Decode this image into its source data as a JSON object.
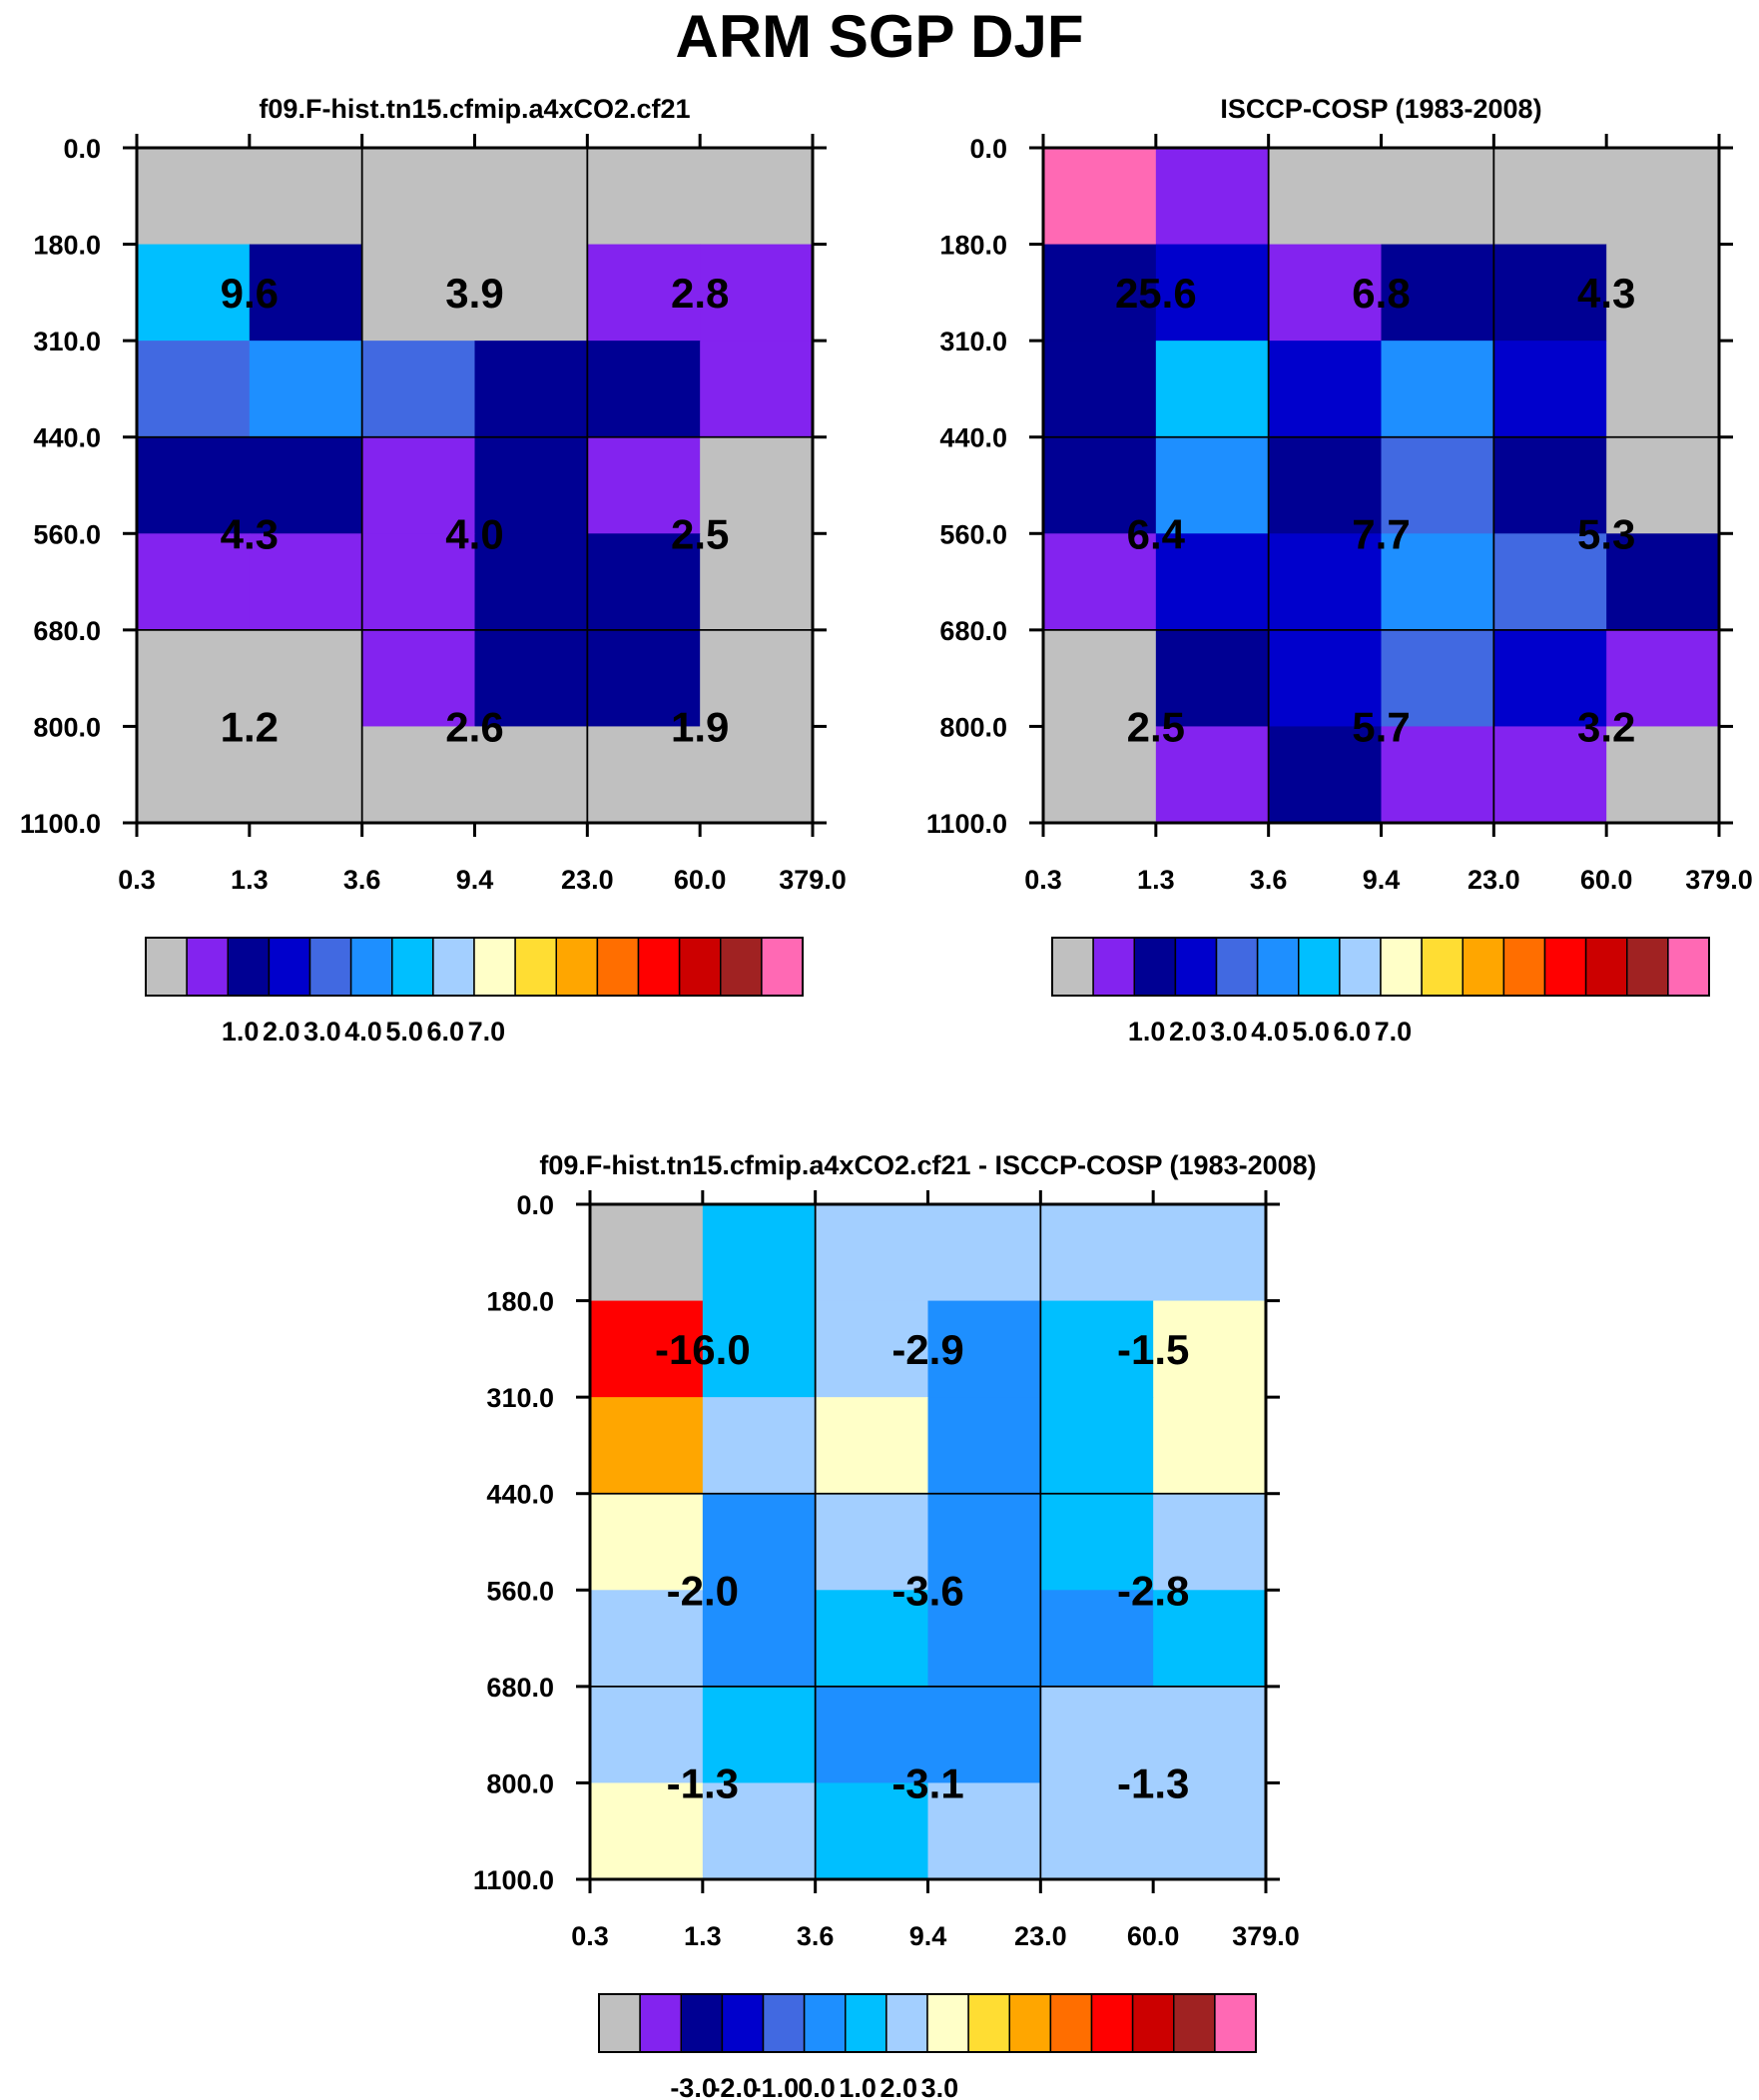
{
  "title": "ARM SGP DJF",
  "colors": {
    "missing": "#c0c0c0",
    "palette": [
      "#c0c0c0",
      "#8323ef",
      "#000093",
      "#0000cc",
      "#4169e1",
      "#1e8fff",
      "#00bfff",
      "#a3cfff",
      "#ffffc8",
      "#ffdd33",
      "#ffa600",
      "#ff6e00",
      "#ff0000",
      "#cc0000",
      "#a02222",
      "#ff69b4"
    ]
  },
  "chart_data": [
    {
      "type": "heatmap",
      "panel": "model",
      "title": "f09.F-hist.tn15.cfmip.a4xCO2.cf21",
      "xticks": [
        "0.3",
        "1.3",
        "3.6",
        "9.4",
        "23.0",
        "60.0",
        "379.0"
      ],
      "yticks": [
        "0.0",
        "180.0",
        "310.0",
        "440.0",
        "560.0",
        "680.0",
        "800.0",
        "1100.0"
      ],
      "cell_color_index": [
        [
          0,
          0,
          0,
          0,
          0,
          0
        ],
        [
          6,
          2,
          0,
          0,
          1,
          1
        ],
        [
          4,
          5,
          4,
          2,
          2,
          1
        ],
        [
          2,
          2,
          1,
          2,
          1,
          0
        ],
        [
          1,
          1,
          1,
          2,
          2,
          0
        ],
        [
          0,
          0,
          1,
          2,
          2,
          0
        ],
        [
          0,
          0,
          0,
          0,
          0,
          0
        ]
      ],
      "block_values": [
        [
          "9.6",
          "3.9",
          "2.8"
        ],
        [
          "4.3",
          "4.0",
          "2.5"
        ],
        [
          "1.2",
          "2.6",
          "1.9"
        ]
      ],
      "colorbar_labels": [
        "1.0",
        "2.0",
        "3.0",
        "4.0",
        "5.0",
        "6.0",
        "7.0"
      ],
      "colorbar_label_start": 1
    },
    {
      "type": "heatmap",
      "panel": "obs",
      "title": "ISCCP-COSP (1983-2008)",
      "xticks": [
        "0.3",
        "1.3",
        "3.6",
        "9.4",
        "23.0",
        "60.0",
        "379.0"
      ],
      "yticks": [
        "0.0",
        "180.0",
        "310.0",
        "440.0",
        "560.0",
        "680.0",
        "800.0",
        "1100.0"
      ],
      "cell_color_index": [
        [
          15,
          1,
          0,
          0,
          0,
          0
        ],
        [
          2,
          3,
          1,
          2,
          2,
          0
        ],
        [
          2,
          6,
          3,
          5,
          3,
          0
        ],
        [
          2,
          5,
          2,
          4,
          2,
          0
        ],
        [
          1,
          3,
          3,
          5,
          4,
          2
        ],
        [
          0,
          2,
          3,
          4,
          3,
          1
        ],
        [
          0,
          1,
          2,
          1,
          1,
          0
        ]
      ],
      "block_values": [
        [
          "25.6",
          "6.8",
          "4.3"
        ],
        [
          "6.4",
          "7.7",
          "5.3"
        ],
        [
          "2.5",
          "5.7",
          "3.2"
        ]
      ],
      "colorbar_labels": [
        "1.0",
        "2.0",
        "3.0",
        "4.0",
        "5.0",
        "6.0",
        "7.0"
      ],
      "colorbar_label_start": 1
    },
    {
      "type": "heatmap",
      "panel": "difference",
      "title": "f09.F-hist.tn15.cfmip.a4xCO2.cf21 - ISCCP-COSP (1983-2008)",
      "xticks": [
        "0.3",
        "1.3",
        "3.6",
        "9.4",
        "23.0",
        "60.0",
        "379.0"
      ],
      "yticks": [
        "0.0",
        "180.0",
        "310.0",
        "440.0",
        "560.0",
        "680.0",
        "800.0",
        "1100.0"
      ],
      "cell_color_index": [
        [
          0,
          6,
          7,
          7,
          7,
          7
        ],
        [
          12,
          6,
          7,
          5,
          6,
          8
        ],
        [
          10,
          7,
          8,
          5,
          6,
          8
        ],
        [
          8,
          5,
          7,
          5,
          6,
          7
        ],
        [
          7,
          5,
          6,
          5,
          5,
          6
        ],
        [
          7,
          6,
          5,
          5,
          7,
          7
        ],
        [
          8,
          7,
          6,
          7,
          7,
          7
        ]
      ],
      "block_values": [
        [
          "-16.0",
          "-2.9",
          "-1.5"
        ],
        [
          "-2.0",
          "-3.6",
          "-2.8"
        ],
        [
          "-1.3",
          "-3.1",
          "-1.3"
        ]
      ],
      "colorbar_labels": [
        "-3.0",
        "-2.0",
        "-1.0",
        "0.0",
        "1.0",
        "2.0",
        "3.0"
      ],
      "colorbar_label_start": 1
    }
  ]
}
